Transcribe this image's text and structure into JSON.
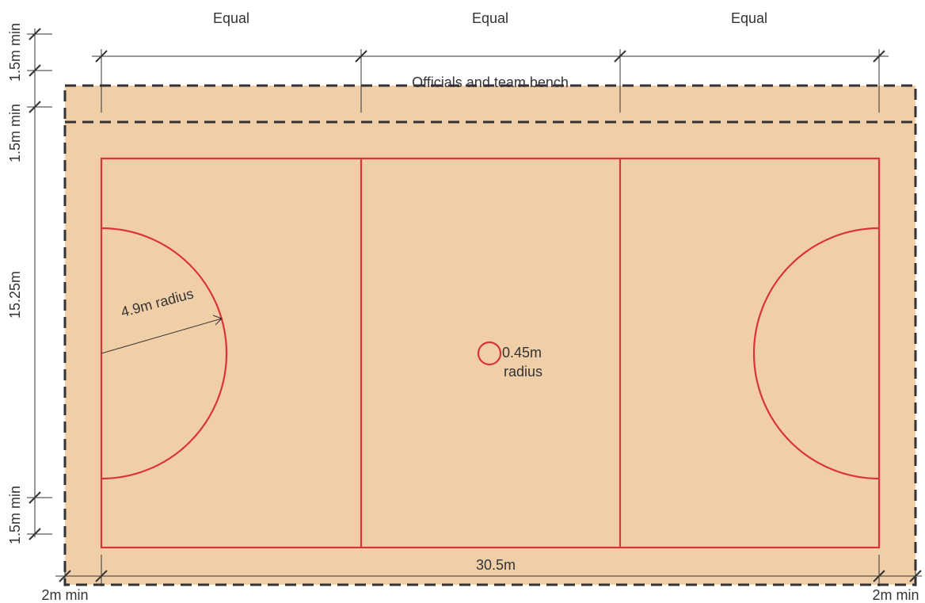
{
  "labels": {
    "equal": "Equal",
    "bench": "Officials and team bench",
    "min_1_5": "1.5m min",
    "width": "15.25m",
    "length": "30.5m",
    "min_2": "2m min",
    "circle_radius": "4.9m radius",
    "center_radius_value": "0.45m",
    "center_radius_word": "radius"
  },
  "colors": {
    "surround": "#f0cfa8",
    "court_line": "#d9343a",
    "dimension_line": "#333333",
    "boundary_dash": "#333333"
  }
}
